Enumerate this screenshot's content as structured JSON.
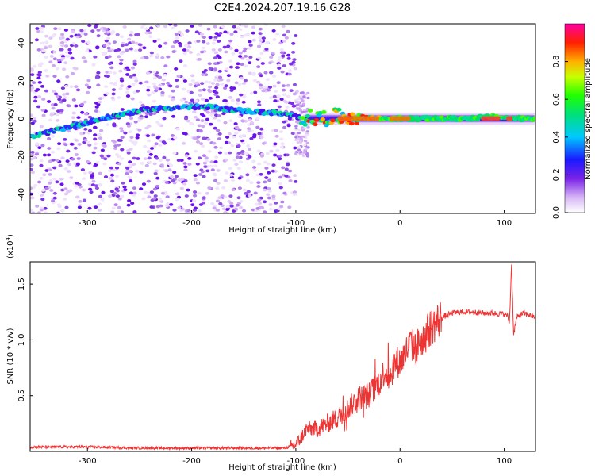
{
  "title": "C2E4.2024.207.19.16.G28",
  "chart_data": [
    {
      "type": "heatmap",
      "name": "spectrogram",
      "xlabel": "Height of straight line (km)",
      "ylabel": "Frequency (Hz)",
      "xlim": [
        -355,
        130
      ],
      "ylim": [
        -50,
        50
      ],
      "xticks": [
        -300,
        -200,
        -100,
        0,
        100
      ],
      "xtick_labels": [
        "-300",
        "-200",
        "-100",
        "0",
        "100"
      ],
      "yticks": [
        -40,
        -20,
        0,
        20,
        40
      ],
      "ytick_labels": [
        "-40",
        "-20",
        "0",
        "20",
        "40"
      ],
      "noise_region_x": [
        -355,
        -100
      ],
      "signal_band_x": [
        -100,
        130
      ],
      "ridge": {
        "x": [
          -355,
          -330,
          -300,
          -270,
          -240,
          -210,
          -180,
          -150,
          -120,
          -100,
          -80,
          -60,
          -40,
          -20,
          0,
          30,
          60,
          90,
          110,
          130
        ],
        "y": [
          -10,
          -6,
          -2,
          2,
          5,
          6,
          6,
          4,
          3,
          1,
          0,
          1,
          1,
          0,
          0,
          0,
          0,
          1,
          0,
          0
        ]
      }
    },
    {
      "type": "colorbar",
      "name": "amplitude-colorbar",
      "label": "Normalized spectral amplitude",
      "ticks": [
        0.0,
        0.2,
        0.4,
        0.6,
        0.8
      ],
      "tick_labels": [
        "0.0",
        "0.2",
        "0.4",
        "0.6",
        "0.8"
      ],
      "range": [
        0,
        1
      ]
    },
    {
      "type": "line",
      "name": "snr",
      "xlabel": "Height of straight line (km)",
      "ylabel": "SNR (10 * v/v)",
      "multiplier": "(x10",
      "multiplier_exp": "4",
      "multiplier_close": ")",
      "xlim": [
        -355,
        130
      ],
      "ylim": [
        0,
        1.7
      ],
      "xticks": [
        -300,
        -200,
        -100,
        0,
        100
      ],
      "xtick_labels": [
        "-300",
        "-200",
        "-100",
        "0",
        "100"
      ],
      "yticks": [
        0.5,
        1.0,
        1.5
      ],
      "ytick_labels": [
        "0.5",
        "1.0",
        "1.5"
      ],
      "color": "#ee3333",
      "series": [
        {
          "name": "snr",
          "x": [
            -355,
            -300,
            -250,
            -200,
            -150,
            -110,
            -100,
            -95,
            -90,
            -80,
            -70,
            -60,
            -50,
            -40,
            -30,
            -20,
            -15,
            -10,
            -5,
            0,
            5,
            10,
            15,
            20,
            25,
            30,
            40,
            50,
            60,
            70,
            80,
            90,
            100,
            103,
            105,
            107,
            109,
            112,
            118,
            125,
            130
          ],
          "y": [
            0.04,
            0.04,
            0.03,
            0.03,
            0.03,
            0.03,
            0.06,
            0.12,
            0.2,
            0.2,
            0.25,
            0.3,
            0.38,
            0.48,
            0.5,
            0.62,
            0.72,
            0.66,
            0.8,
            0.8,
            0.88,
            0.97,
            0.92,
            1.0,
            1.05,
            1.12,
            1.2,
            1.24,
            1.25,
            1.25,
            1.24,
            1.24,
            1.23,
            1.22,
            1.15,
            1.68,
            1.05,
            1.2,
            1.24,
            1.22,
            1.2
          ]
        }
      ]
    }
  ]
}
